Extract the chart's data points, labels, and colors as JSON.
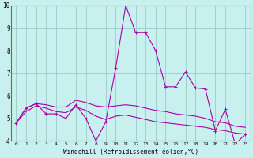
{
  "background_color": "#c8f0ee",
  "grid_color": "#99cccc",
  "line_color": "#aa00aa",
  "xlim": [
    -0.5,
    23.5
  ],
  "ylim": [
    4,
    10
  ],
  "xlabel": "Windchill (Refroidissement éolien,°C)",
  "yticks": [
    4,
    5,
    6,
    7,
    8,
    9,
    10
  ],
  "xticks": [
    0,
    1,
    2,
    3,
    4,
    5,
    6,
    7,
    8,
    9,
    10,
    11,
    12,
    13,
    14,
    15,
    16,
    17,
    18,
    19,
    20,
    21,
    22,
    23
  ],
  "series": {
    "main": [
      4.8,
      5.45,
      5.65,
      5.2,
      5.2,
      5.0,
      5.6,
      5.0,
      4.0,
      4.85,
      7.25,
      10.0,
      8.8,
      8.8,
      8.0,
      6.4,
      6.4,
      7.05,
      6.35,
      6.3,
      4.45,
      5.4,
      3.85,
      4.3
    ],
    "upper": [
      4.8,
      5.45,
      5.65,
      5.6,
      5.5,
      5.5,
      5.8,
      5.7,
      5.55,
      5.5,
      5.55,
      5.6,
      5.55,
      5.45,
      5.35,
      5.3,
      5.2,
      5.15,
      5.1,
      5.0,
      4.85,
      4.8,
      4.65,
      4.6
    ],
    "lower": [
      4.8,
      5.3,
      5.55,
      5.45,
      5.3,
      5.25,
      5.5,
      5.35,
      5.1,
      4.95,
      5.1,
      5.15,
      5.05,
      4.95,
      4.85,
      4.8,
      4.75,
      4.7,
      4.65,
      4.6,
      4.5,
      4.45,
      4.35,
      4.3
    ]
  }
}
